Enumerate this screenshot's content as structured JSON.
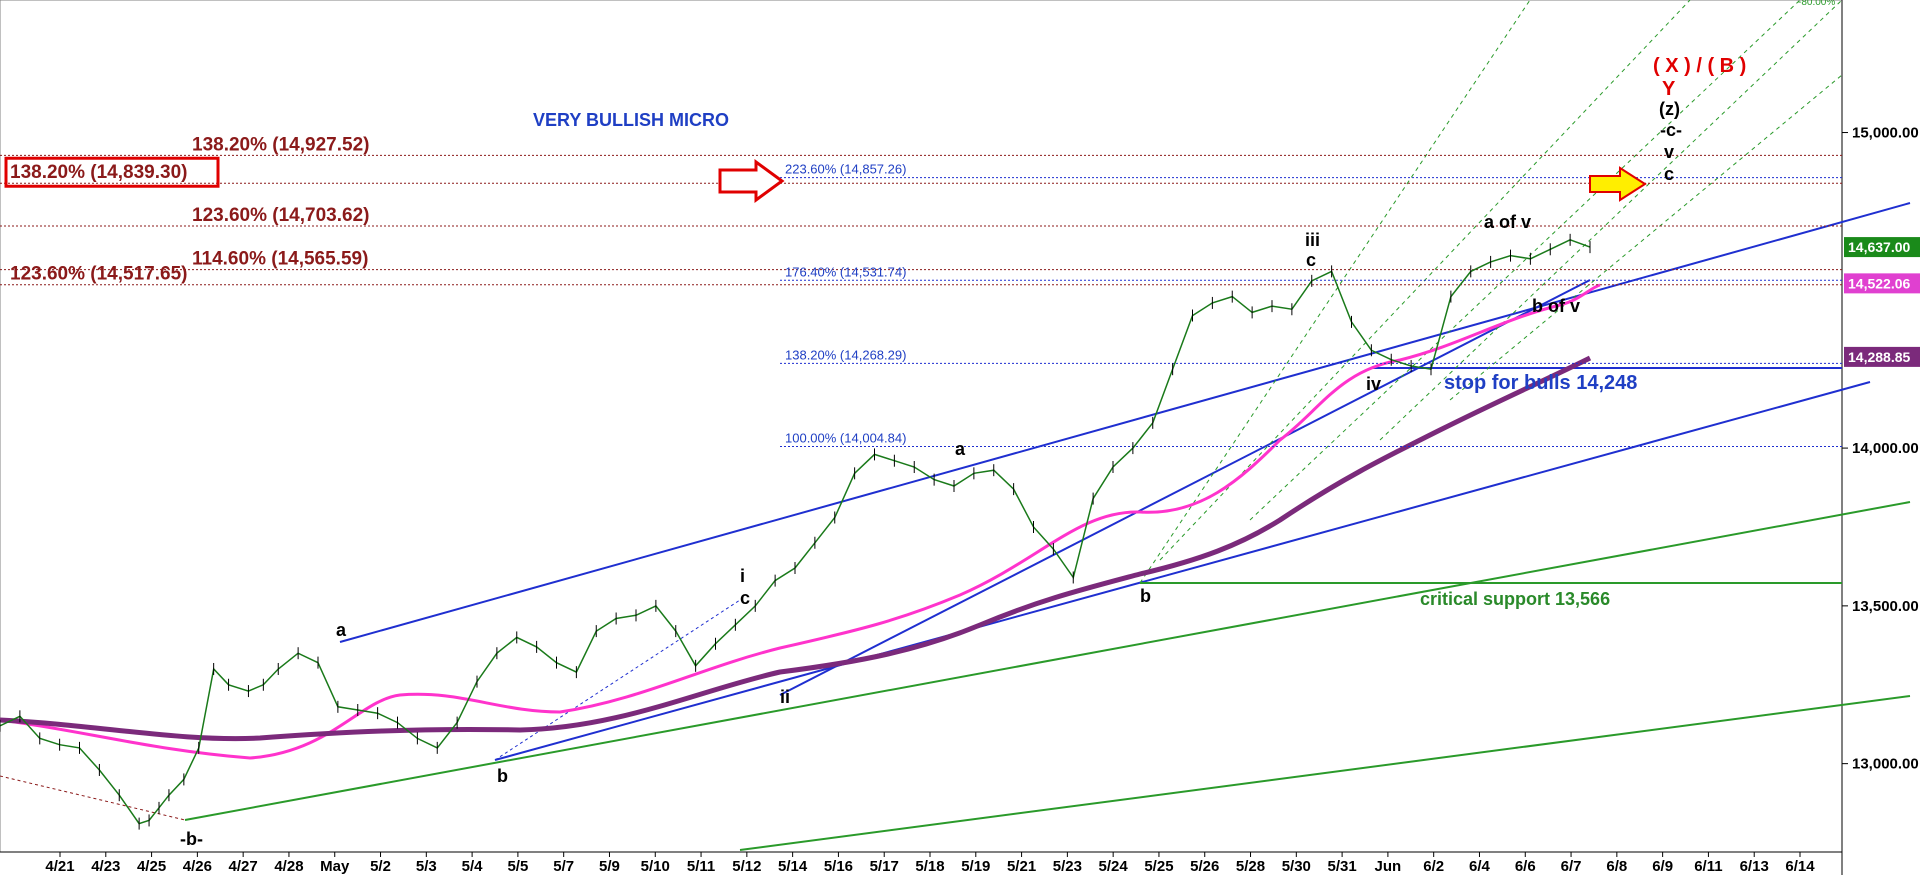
{
  "chart_data": {
    "type": "line",
    "title": "VERY BULLISH  MICRO",
    "y_ticks": [
      {
        "value": 13000,
        "label": "13,000.00"
      },
      {
        "value": 13500,
        "label": "13,500.00"
      },
      {
        "value": 14000,
        "label": "14,000.00"
      },
      {
        "value": 15000,
        "label": "15,000.00"
      }
    ],
    "x_ticks": [
      "4/21",
      "4/23",
      "4/25",
      "4/26",
      "4/27",
      "4/28",
      "May",
      "5/2",
      "5/3",
      "5/4",
      "5/5",
      "5/7",
      "5/9",
      "5/10",
      "5/11",
      "5/12",
      "5/14",
      "5/16",
      "5/17",
      "5/18",
      "5/19",
      "5/21",
      "5/23",
      "5/24",
      "5/25",
      "5/26",
      "5/28",
      "5/30",
      "5/31",
      "Jun",
      "6/2",
      "6/4",
      "6/6",
      "6/7",
      "6/8",
      "6/9",
      "6/11",
      "6/13",
      "6/14"
    ],
    "ylim": [
      12720,
      15420
    ],
    "price_tags": [
      {
        "label": "14,637.00",
        "value": 14637,
        "color": "#1a8a1a"
      },
      {
        "label": "14,522.06",
        "value": 14522,
        "color": "#e040d0"
      },
      {
        "label": "14,288.85",
        "value": 14289,
        "color": "#7b2a7b"
      }
    ],
    "fib_levels_blue": [
      {
        "label": "223.60% (14,857.26)",
        "value": 14857.26
      },
      {
        "label": "176.40% (14,531.74)",
        "value": 14531.74
      },
      {
        "label": "138.20% (14,268.29)",
        "value": 14268.29
      },
      {
        "label": "100.00% (14,004.84)",
        "value": 14004.84
      }
    ],
    "fib_levels_red": [
      {
        "label": "138.20% (14,927.52)",
        "value": 14927.52
      },
      {
        "label": "138.20% (14,839.30)",
        "value": 14839.3,
        "boxed": true
      },
      {
        "label": "123.60% (14,703.62)",
        "value": 14703.62
      },
      {
        "label": "114.60% (14,565.59)",
        "value": 14565.59
      },
      {
        "label": "123.60% (14,517.65)",
        "value": 14517.65
      }
    ],
    "corner_label": "-80.00%",
    "wave_labels": [
      "-b-",
      "a",
      "b",
      "i",
      "c",
      "ii",
      "a",
      "b",
      "iii",
      "c",
      "iv",
      "a of v",
      "b of v",
      "(z)",
      "-c-",
      "v",
      "c"
    ],
    "projection_labels": [
      "( X ) / ( B )",
      "Y"
    ],
    "notes": {
      "stop": "stop for bulls 14,248",
      "support": "critical support 13,566"
    },
    "series": [
      {
        "x": [
          0,
          20,
          40,
          60,
          80,
          100,
          120,
          140,
          150,
          160,
          170,
          185,
          200,
          215,
          230,
          250,
          265,
          280,
          300,
          320,
          340,
          360,
          380,
          400,
          420,
          440,
          460,
          480,
          500,
          520,
          540,
          560,
          580,
          600,
          620,
          640,
          660,
          680,
          700,
          720,
          740,
          760,
          780,
          800,
          820,
          840,
          860,
          880,
          900,
          920,
          940,
          960,
          980,
          1000,
          1020,
          1040,
          1060,
          1080,
          1100,
          1120,
          1140,
          1160,
          1180,
          1200,
          1220,
          1240,
          1260,
          1280,
          1300,
          1320,
          1340,
          1360,
          1380,
          1400,
          1420,
          1440,
          1460,
          1480,
          1500,
          1520,
          1540,
          1560,
          1580,
          1600
        ],
        "values": [
          13120,
          13150,
          13080,
          13060,
          13050,
          12980,
          12900,
          12810,
          12820,
          12860,
          12900,
          12950,
          13050,
          13300,
          13250,
          13230,
          13250,
          13300,
          13350,
          13320,
          13180,
          13170,
          13160,
          13130,
          13080,
          13050,
          13130,
          13260,
          13350,
          13400,
          13370,
          13320,
          13290,
          13420,
          13460,
          13470,
          13500,
          13420,
          13310,
          13380,
          13440,
          13500,
          13580,
          13620,
          13700,
          13780,
          13920,
          13980,
          13960,
          13940,
          13900,
          13880,
          13920,
          13930,
          13870,
          13750,
          13680,
          13590,
          13840,
          13940,
          14000,
          14080,
          14250,
          14420,
          14460,
          14480,
          14430,
          14450,
          14440,
          14530,
          14560,
          14400,
          14310,
          14280,
          14260,
          14250,
          14480,
          14560,
          14590,
          14610,
          14600,
          14630,
          14660,
          14637
        ]
      }
    ]
  }
}
